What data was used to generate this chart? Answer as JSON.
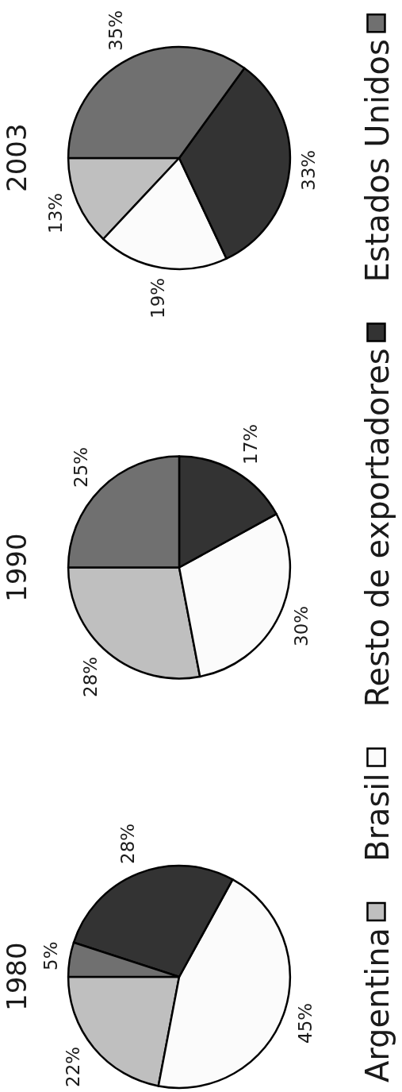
{
  "chart_data": {
    "type": "pie",
    "categories": [
      "Argentina",
      "Brasil",
      "Resto de exportadores",
      "Estados Unidos"
    ],
    "colors": [
      "#bfbfbf",
      "#fbfbfb",
      "#333333",
      "#707070"
    ],
    "legend": "right",
    "series": [
      {
        "name": "1980",
        "values": [
          22,
          45,
          28,
          5
        ],
        "value_labels": [
          "22%",
          "45%",
          "28%",
          "5%"
        ]
      },
      {
        "name": "1990",
        "values": [
          28,
          30,
          17,
          25
        ],
        "value_labels": [
          "28%",
          "30%",
          "17%",
          "25%"
        ]
      },
      {
        "name": "2003",
        "values": [
          13,
          19,
          33,
          35
        ],
        "value_labels": [
          "13%",
          "19%",
          "33%",
          "35%"
        ]
      }
    ]
  }
}
